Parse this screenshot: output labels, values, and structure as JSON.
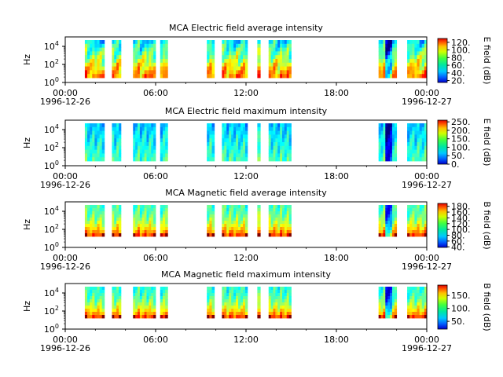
{
  "chart_data": [
    {
      "type": "heatmap",
      "title": "MCA  Electric field average intensity",
      "ylabel": "Hz",
      "y_scale": "log",
      "y_ticks": [
        "10^0",
        "10^2",
        "10^4"
      ],
      "x_ticks": [
        "00:00",
        "06:00",
        "12:00",
        "18:00",
        "00:00"
      ],
      "x_dates": [
        "1996-12-26",
        "1996-12-27"
      ],
      "colorbar_label": "E field (dB)",
      "colorbar_ticks": [
        "20.",
        "40.",
        "60.",
        "80.",
        "100.",
        "120."
      ],
      "colorbar_range": [
        15,
        130
      ],
      "data_intervals_hours": [
        [
          1.3,
          2.6
        ],
        [
          3.1,
          3.7
        ],
        [
          4.5,
          6.0
        ],
        [
          6.3,
          6.8
        ],
        [
          9.4,
          9.9
        ],
        [
          10.4,
          12.1
        ],
        [
          12.75,
          12.95
        ],
        [
          13.5,
          15.0
        ],
        [
          20.8,
          22.0
        ],
        [
          22.7,
          24.0
        ]
      ]
    },
    {
      "type": "heatmap",
      "title": "MCA  Electric field maximum intensity",
      "ylabel": "Hz",
      "y_scale": "log",
      "y_ticks": [
        "10^0",
        "10^2",
        "10^4"
      ],
      "x_ticks": [
        "00:00",
        "06:00",
        "12:00",
        "18:00",
        "00:00"
      ],
      "x_dates": [
        "1996-12-26",
        "1996-12-27"
      ],
      "colorbar_label": "E field (dB)",
      "colorbar_ticks": [
        "0.",
        "50.",
        "100.",
        "150.",
        "200.",
        "250."
      ],
      "colorbar_range": [
        0,
        260
      ],
      "data_intervals_hours": [
        [
          1.3,
          2.6
        ],
        [
          3.1,
          3.7
        ],
        [
          4.5,
          6.0
        ],
        [
          6.3,
          6.8
        ],
        [
          9.4,
          9.9
        ],
        [
          10.4,
          12.1
        ],
        [
          12.75,
          12.95
        ],
        [
          13.5,
          15.0
        ],
        [
          20.8,
          22.0
        ],
        [
          22.7,
          24.0
        ]
      ]
    },
    {
      "type": "heatmap",
      "title": "MCA  Magnetic field average intensity",
      "ylabel": "Hz",
      "y_scale": "log",
      "y_ticks": [
        "10^0",
        "10^2",
        "10^4"
      ],
      "x_ticks": [
        "00:00",
        "06:00",
        "12:00",
        "18:00",
        "00:00"
      ],
      "x_dates": [
        "1996-12-26",
        "1996-12-27"
      ],
      "colorbar_label": "B field (dB)",
      "colorbar_ticks": [
        "40.",
        "60.",
        "80.",
        "100.",
        "120.",
        "140.",
        "160.",
        "180."
      ],
      "colorbar_range": [
        38,
        190
      ],
      "data_intervals_hours": [
        [
          1.3,
          2.6
        ],
        [
          3.1,
          3.7
        ],
        [
          4.5,
          6.0
        ],
        [
          6.3,
          6.8
        ],
        [
          9.4,
          9.9
        ],
        [
          10.4,
          12.1
        ],
        [
          12.75,
          12.95
        ],
        [
          13.5,
          15.0
        ],
        [
          20.8,
          22.0
        ],
        [
          22.7,
          24.0
        ]
      ]
    },
    {
      "type": "heatmap",
      "title": "MCA  Magnetic field maximum intensity",
      "ylabel": "Hz",
      "y_scale": "log",
      "y_ticks": [
        "10^0",
        "10^2",
        "10^4"
      ],
      "x_ticks": [
        "00:00",
        "06:00",
        "12:00",
        "18:00",
        "00:00"
      ],
      "x_dates": [
        "1996-12-26",
        "1996-12-27"
      ],
      "colorbar_label": "B field (dB)",
      "colorbar_ticks": [
        "50.",
        "100.",
        "150."
      ],
      "colorbar_range": [
        20,
        190
      ],
      "data_intervals_hours": [
        [
          1.3,
          2.6
        ],
        [
          3.1,
          3.7
        ],
        [
          4.5,
          6.0
        ],
        [
          6.3,
          6.8
        ],
        [
          9.4,
          9.9
        ],
        [
          10.4,
          12.1
        ],
        [
          12.75,
          12.95
        ],
        [
          13.5,
          15.0
        ],
        [
          20.8,
          22.0
        ],
        [
          22.7,
          24.0
        ]
      ]
    }
  ]
}
